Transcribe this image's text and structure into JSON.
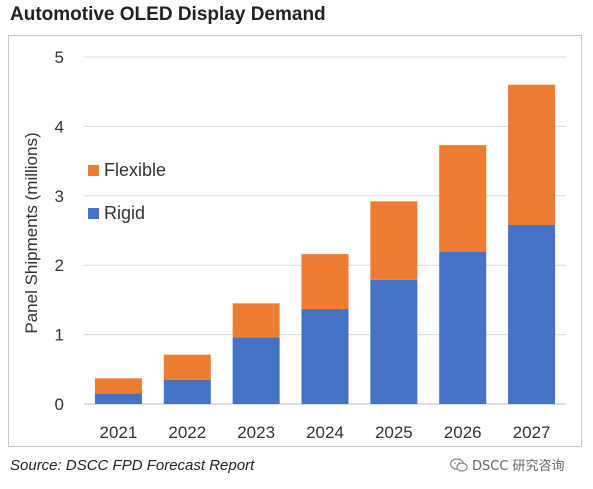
{
  "title": "Automotive OLED Display Demand",
  "source": "Source: DSCC FPD Forecast Report",
  "watermark": {
    "text": "DSCC 研究咨询",
    "icon": "wechat-icon"
  },
  "colors": {
    "rigid": "#4472C4",
    "flexible": "#ED7D31"
  },
  "chart_data": {
    "type": "bar",
    "stacked": true,
    "title": "Automotive OLED Display Demand",
    "xlabel": "",
    "ylabel": "Panel Shipments (millions)",
    "ylim": [
      0,
      5
    ],
    "yticks": [
      0,
      1,
      2,
      3,
      4,
      5
    ],
    "grid": true,
    "legend_position": "left-center",
    "categories": [
      "2021",
      "2022",
      "2023",
      "2024",
      "2025",
      "2026",
      "2027"
    ],
    "series": [
      {
        "name": "Rigid",
        "color": "#4472C4",
        "values": [
          0.15,
          0.35,
          0.96,
          1.37,
          1.79,
          2.19,
          2.58
        ]
      },
      {
        "name": "Flexible",
        "color": "#ED7D31",
        "values": [
          0.22,
          0.36,
          0.49,
          0.79,
          1.13,
          1.54,
          2.02
        ]
      }
    ],
    "legend": [
      {
        "name": "Flexible",
        "color": "#ED7D31"
      },
      {
        "name": "Rigid",
        "color": "#4472C4"
      }
    ]
  }
}
